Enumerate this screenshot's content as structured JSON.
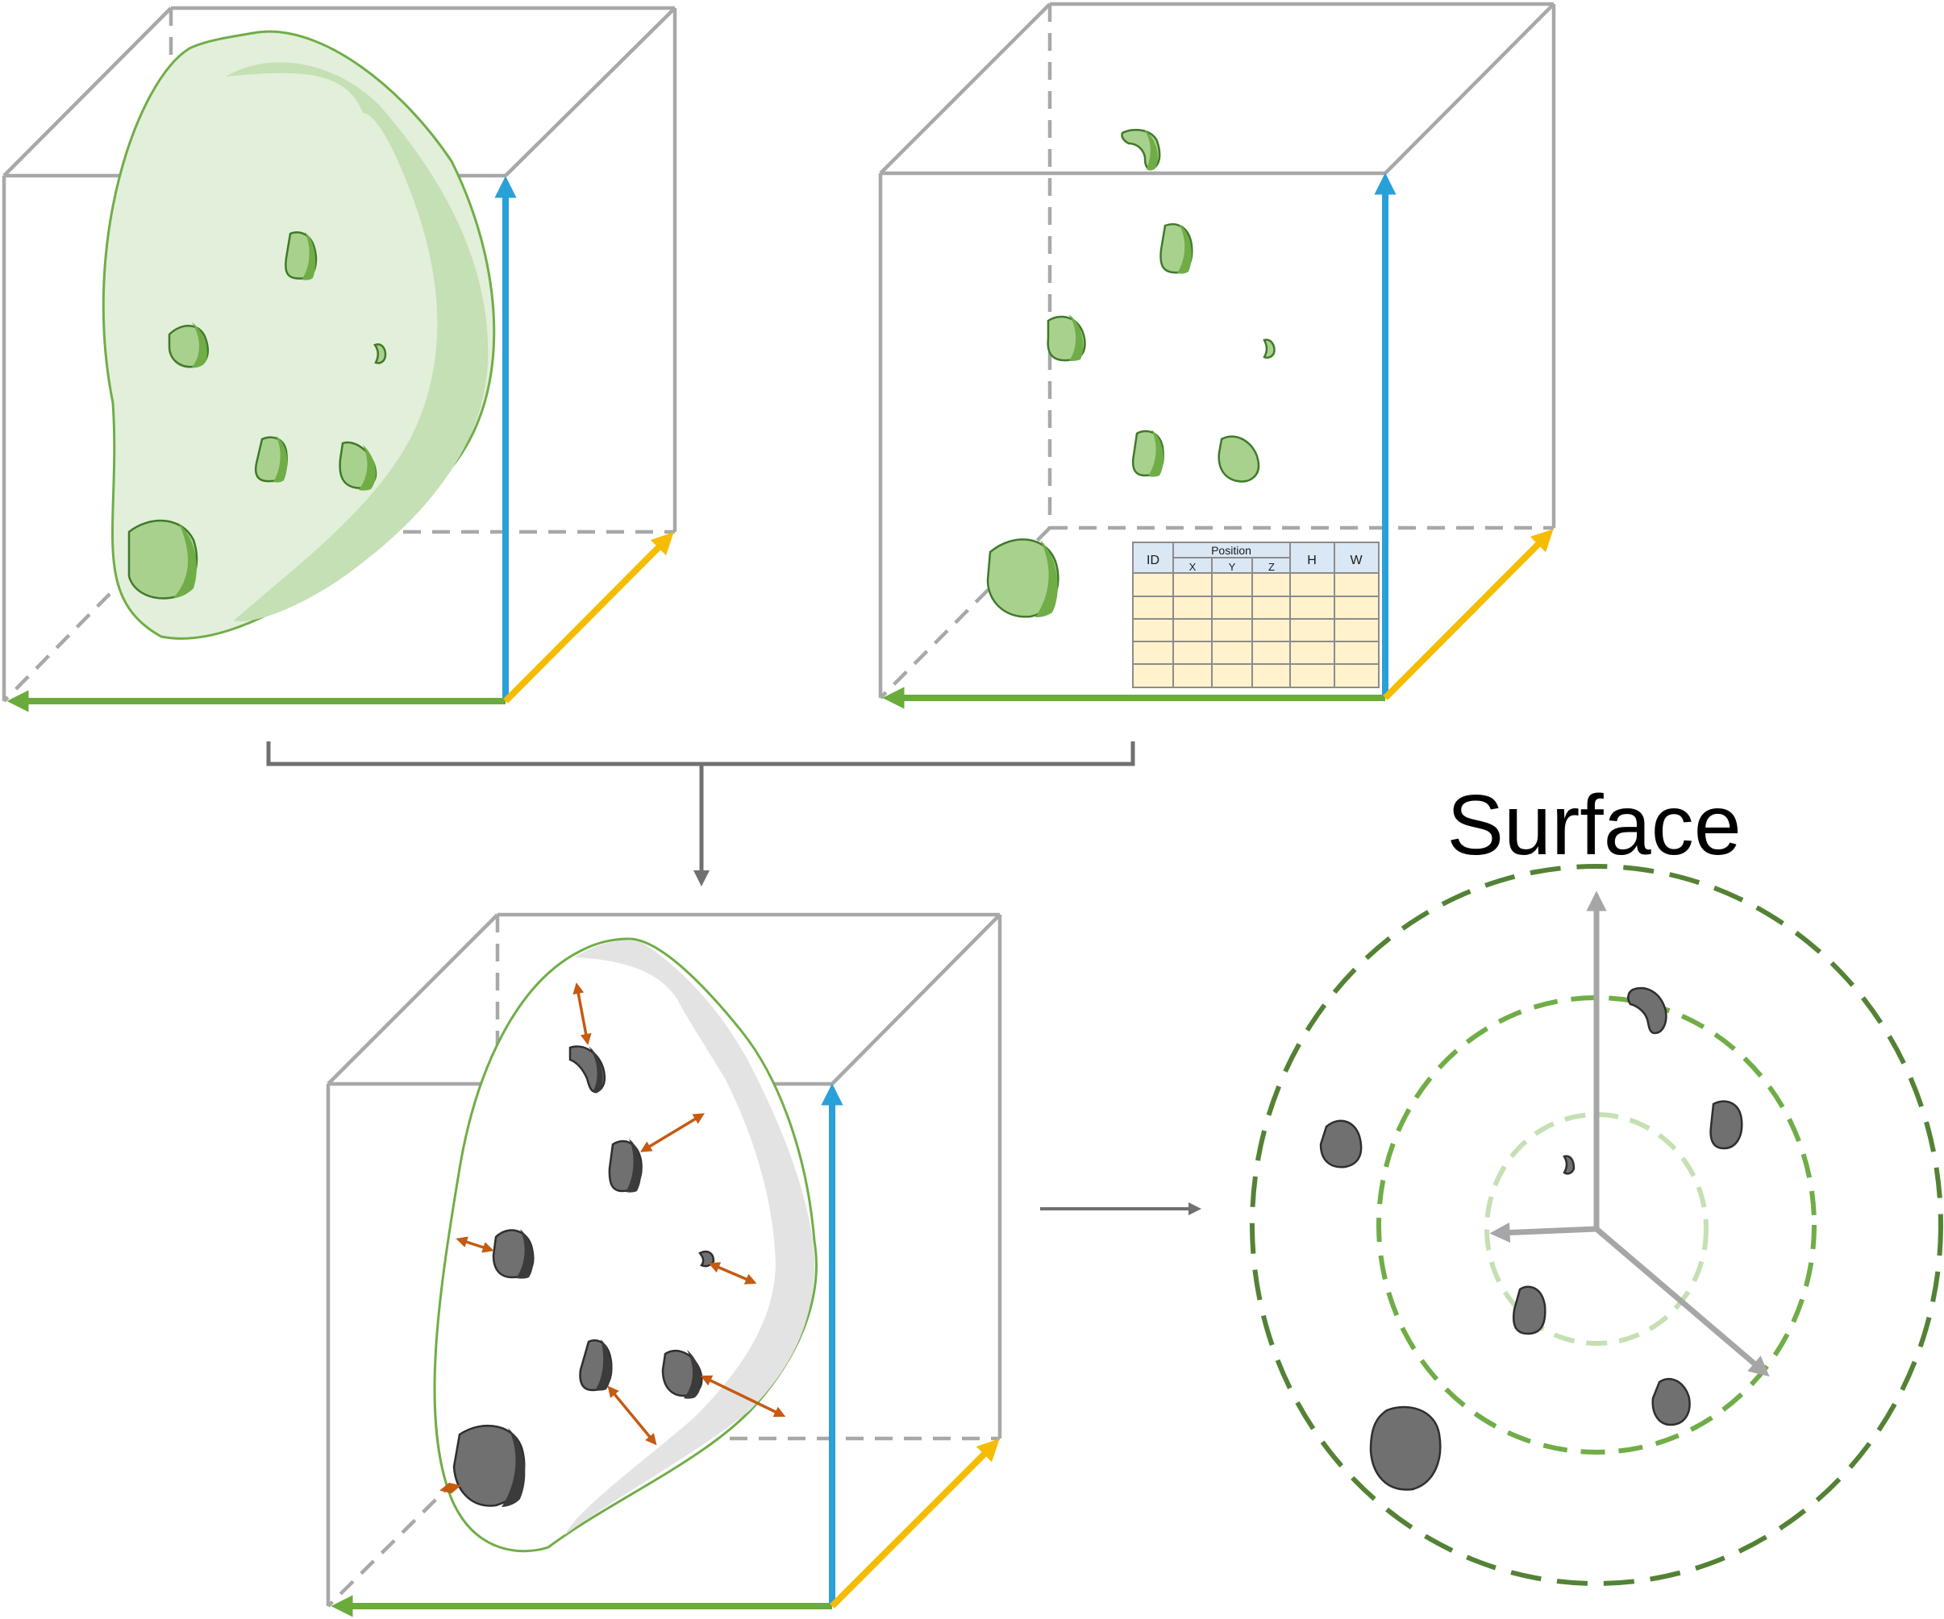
{
  "surface_label": "Surface",
  "table": {
    "headers": {
      "id": "ID",
      "position": "Position",
      "x": "X",
      "y": "Y",
      "z": "Z",
      "h": "H",
      "w": "W"
    },
    "empty_rows": 5,
    "header_fill": "#dae7f5",
    "body_fill": "#fff2cc"
  },
  "colors": {
    "axis_blue": "#2aa0d8",
    "axis_green": "#6aab3c",
    "axis_yellow": "#f5bc00",
    "cube_gray": "#a8a8a8",
    "arrow_gray": "#707070",
    "distance_arrow": "#c55a11",
    "organ_fill": "#e2efda",
    "organ_shade": "#c5e0b4",
    "organ_stroke": "#70ad47",
    "nodule_fill": "#a9d18e",
    "nodule_shade": "#70ad47",
    "nodule_stroke": "#3f7a28",
    "gray_nodule_fill": "#707070",
    "gray_nodule_shade": "#3b3b3b",
    "surface_band": "#e3e3e3",
    "ring_inner": "#c5e0b4",
    "ring_middle": "#70ad47",
    "ring_outer": "#548235",
    "ring_axis": "#a6a6a6"
  }
}
